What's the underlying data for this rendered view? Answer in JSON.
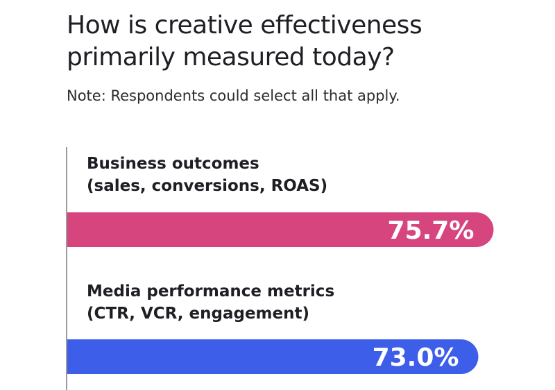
{
  "header": {
    "title_line1": "How is creative effectiveness",
    "title_line2": "primarily measured today?",
    "note": "Note: Respondents could select all that apply."
  },
  "colors": {
    "axis": "#9a9a9a",
    "text": "#1e1e24",
    "value_text": "#ffffff"
  },
  "chart_data": {
    "type": "bar",
    "orientation": "horizontal",
    "title": "How is creative effectiveness primarily measured today?",
    "subtitle": "Note: Respondents could select all that apply.",
    "categories": [
      {
        "line1": "Business outcomes",
        "line2": "(sales, conversions, ROAS)"
      },
      {
        "line1": "Media performance metrics",
        "line2": "(CTR, VCR, engagement)"
      }
    ],
    "values": [
      75.7,
      73.0
    ],
    "value_labels": [
      "75.7%",
      "73.0%"
    ],
    "colors": [
      "#d6457e",
      "#3c5ee8"
    ],
    "unit": "%"
  }
}
